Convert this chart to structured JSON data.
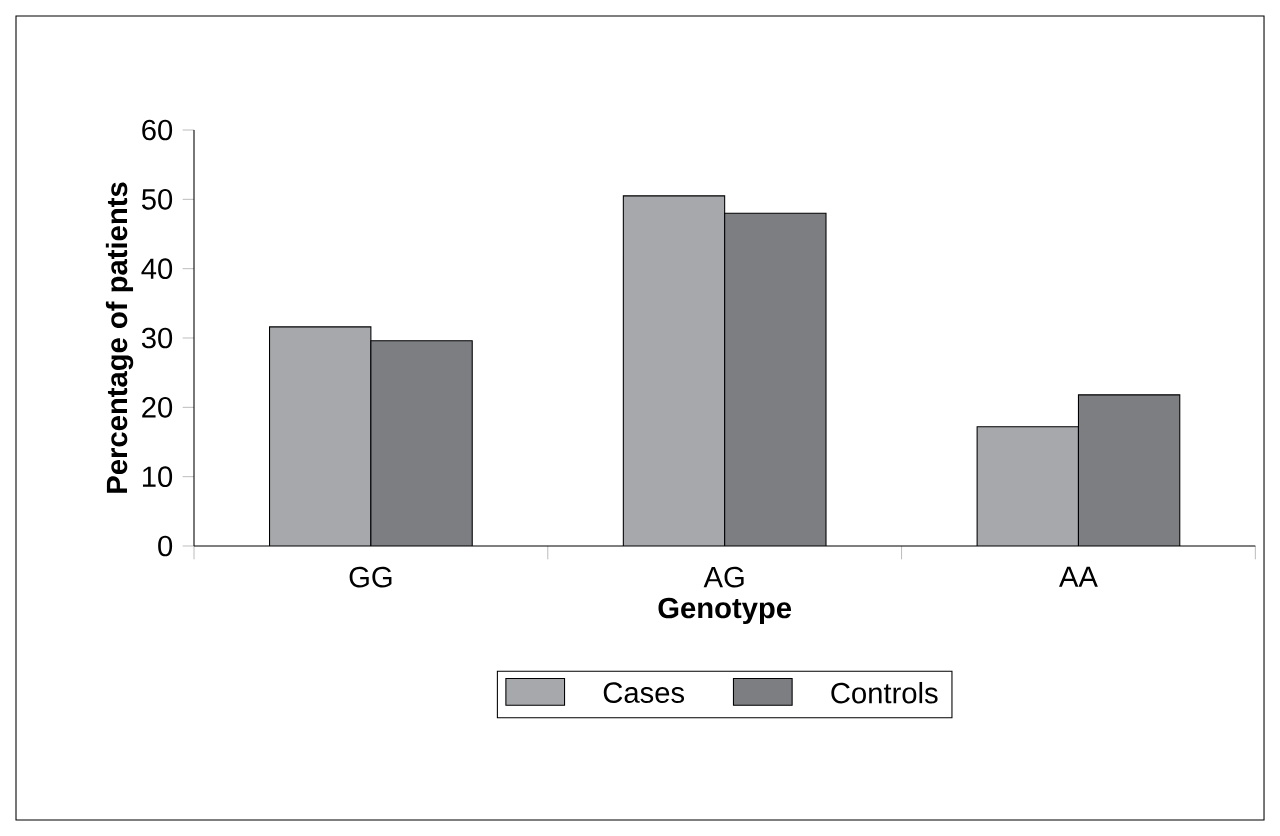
{
  "chart_data": {
    "type": "bar",
    "xlabel": "Genotype",
    "ylabel": "Percentage of patients",
    "categories": [
      "GG",
      "AG",
      "AA"
    ],
    "series": [
      {
        "name": "Cases",
        "color": "#a7a8ac",
        "values": [
          31.6,
          50.5,
          17.2
        ]
      },
      {
        "name": "Controls",
        "color": "#7d7e82",
        "values": [
          29.6,
          48.0,
          21.8
        ]
      }
    ],
    "ylim": [
      0,
      60
    ],
    "yticks": [
      0,
      10,
      20,
      30,
      40,
      50,
      60
    ],
    "grid": false,
    "legend": "bottom"
  }
}
